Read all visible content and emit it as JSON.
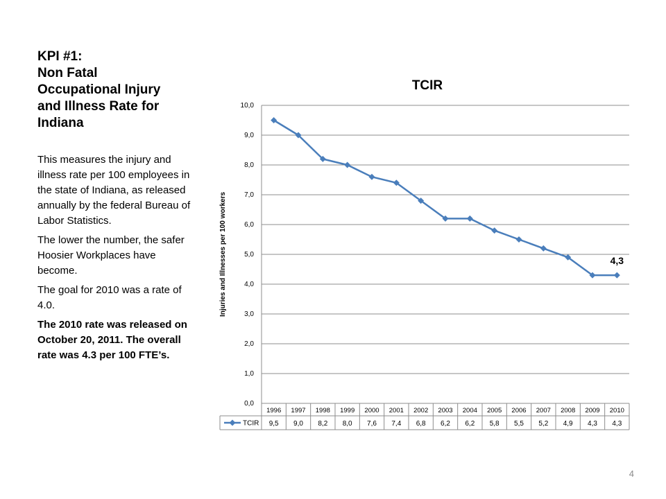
{
  "slide": {
    "title_lines": [
      "KPI #1:",
      "Non Fatal",
      "Occupational Injury",
      "and Illness Rate for",
      "Indiana"
    ],
    "paragraphs": [
      "This measures the injury and illness rate per 100 employees in the state of Indiana, as released annually by the federal Bureau of Labor Statistics.",
      "The lower the number, the safer Hoosier Workplaces have become.",
      "The goal for 2010 was a rate of 4.0."
    ],
    "bold_paragraph": "The 2010 rate was released on October 20, 2011.  The overall rate was 4.3 per 100 FTE’s.",
    "page_number": "4"
  },
  "chart_data": {
    "type": "line",
    "title": "TCIR",
    "xlabel": "",
    "ylabel": "Injuries and Illnesses per 100 workers",
    "categories": [
      "1996",
      "1997",
      "1998",
      "1999",
      "2000",
      "2001",
      "2002",
      "2003",
      "2004",
      "2005",
      "2006",
      "2007",
      "2008",
      "2009",
      "2010"
    ],
    "series": [
      {
        "name": "TCIR",
        "values": [
          9.5,
          9.0,
          8.2,
          8.0,
          7.6,
          7.4,
          6.8,
          6.2,
          6.2,
          5.8,
          5.5,
          5.2,
          4.9,
          4.3,
          4.3
        ],
        "value_labels": [
          "9,5",
          "9,0",
          "8,2",
          "8,0",
          "7,6",
          "7,4",
          "6,8",
          "6,2",
          "6,2",
          "5,8",
          "5,5",
          "5,2",
          "4,9",
          "4,3",
          "4,3"
        ],
        "color": "#4a7ebb"
      }
    ],
    "ylim": [
      0,
      10
    ],
    "yticks": [
      "0,0",
      "1,0",
      "2,0",
      "3,0",
      "4,0",
      "5,0",
      "6,0",
      "7,0",
      "8,0",
      "9,0",
      "10,0"
    ],
    "annotation": {
      "label": "4,3",
      "category": "2010"
    },
    "grid": true,
    "legend": "data-table"
  }
}
